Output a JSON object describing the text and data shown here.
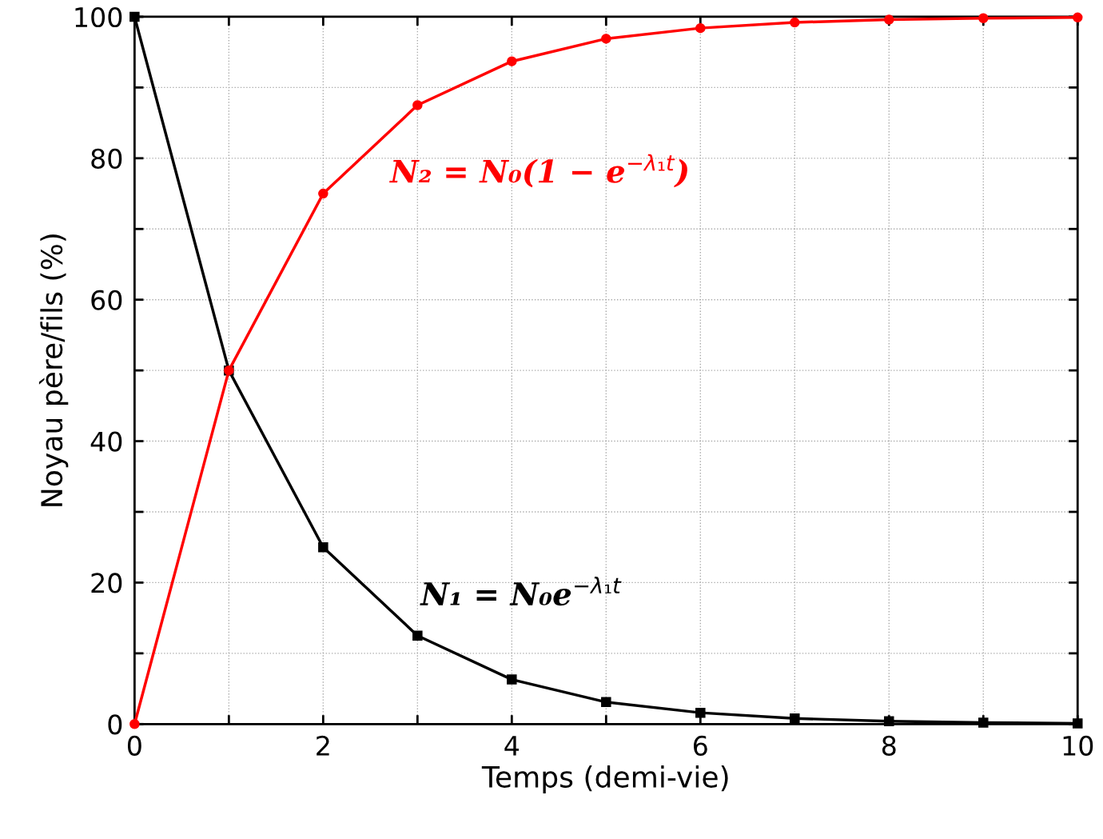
{
  "chart_data": {
    "type": "line",
    "xlabel": "Temps (demi-vie)",
    "ylabel": "Noyau père/fils (%)",
    "x": [
      0,
      1,
      2,
      3,
      4,
      5,
      6,
      7,
      8,
      9,
      10
    ],
    "series": [
      {
        "color": "#000000",
        "marker": "square",
        "values": [
          100,
          50,
          25,
          12.5,
          6.3,
          3.1,
          1.6,
          0.8,
          0.4,
          0.2,
          0.1
        ]
      },
      {
        "color": "#ff0000",
        "marker": "circle",
        "values": [
          0,
          50,
          75,
          87.5,
          93.7,
          96.9,
          98.4,
          99.2,
          99.6,
          99.8,
          99.9
        ]
      }
    ],
    "annotations": [
      "N₂ = N₀(1 − e$^{−λ₁t}$)",
      "N₁ = N₀e$^{−λ₁t}$"
    ],
    "xlim": [
      0,
      10
    ],
    "ylim": [
      0,
      100
    ],
    "xticks": [
      0,
      {
        "value": 1,
        "label": null
      },
      2,
      {
        "value": 3,
        "label": null
      },
      4,
      {
        "value": 5,
        "label": null
      },
      6,
      {
        "value": 7,
        "label": null
      },
      8,
      {
        "value": 9,
        "label": null
      },
      10
    ],
    "yticks": [
      0,
      {
        "value": 10,
        "label": null
      },
      20,
      {
        "value": 30,
        "label": null
      },
      40,
      {
        "value": 50,
        "label": null
      },
      60,
      {
        "value": 70,
        "label": null
      },
      80,
      {
        "value": 90,
        "label": null
      },
      100
    ],
    "grid": true,
    "legend": false,
    "line_style": "solid"
  }
}
